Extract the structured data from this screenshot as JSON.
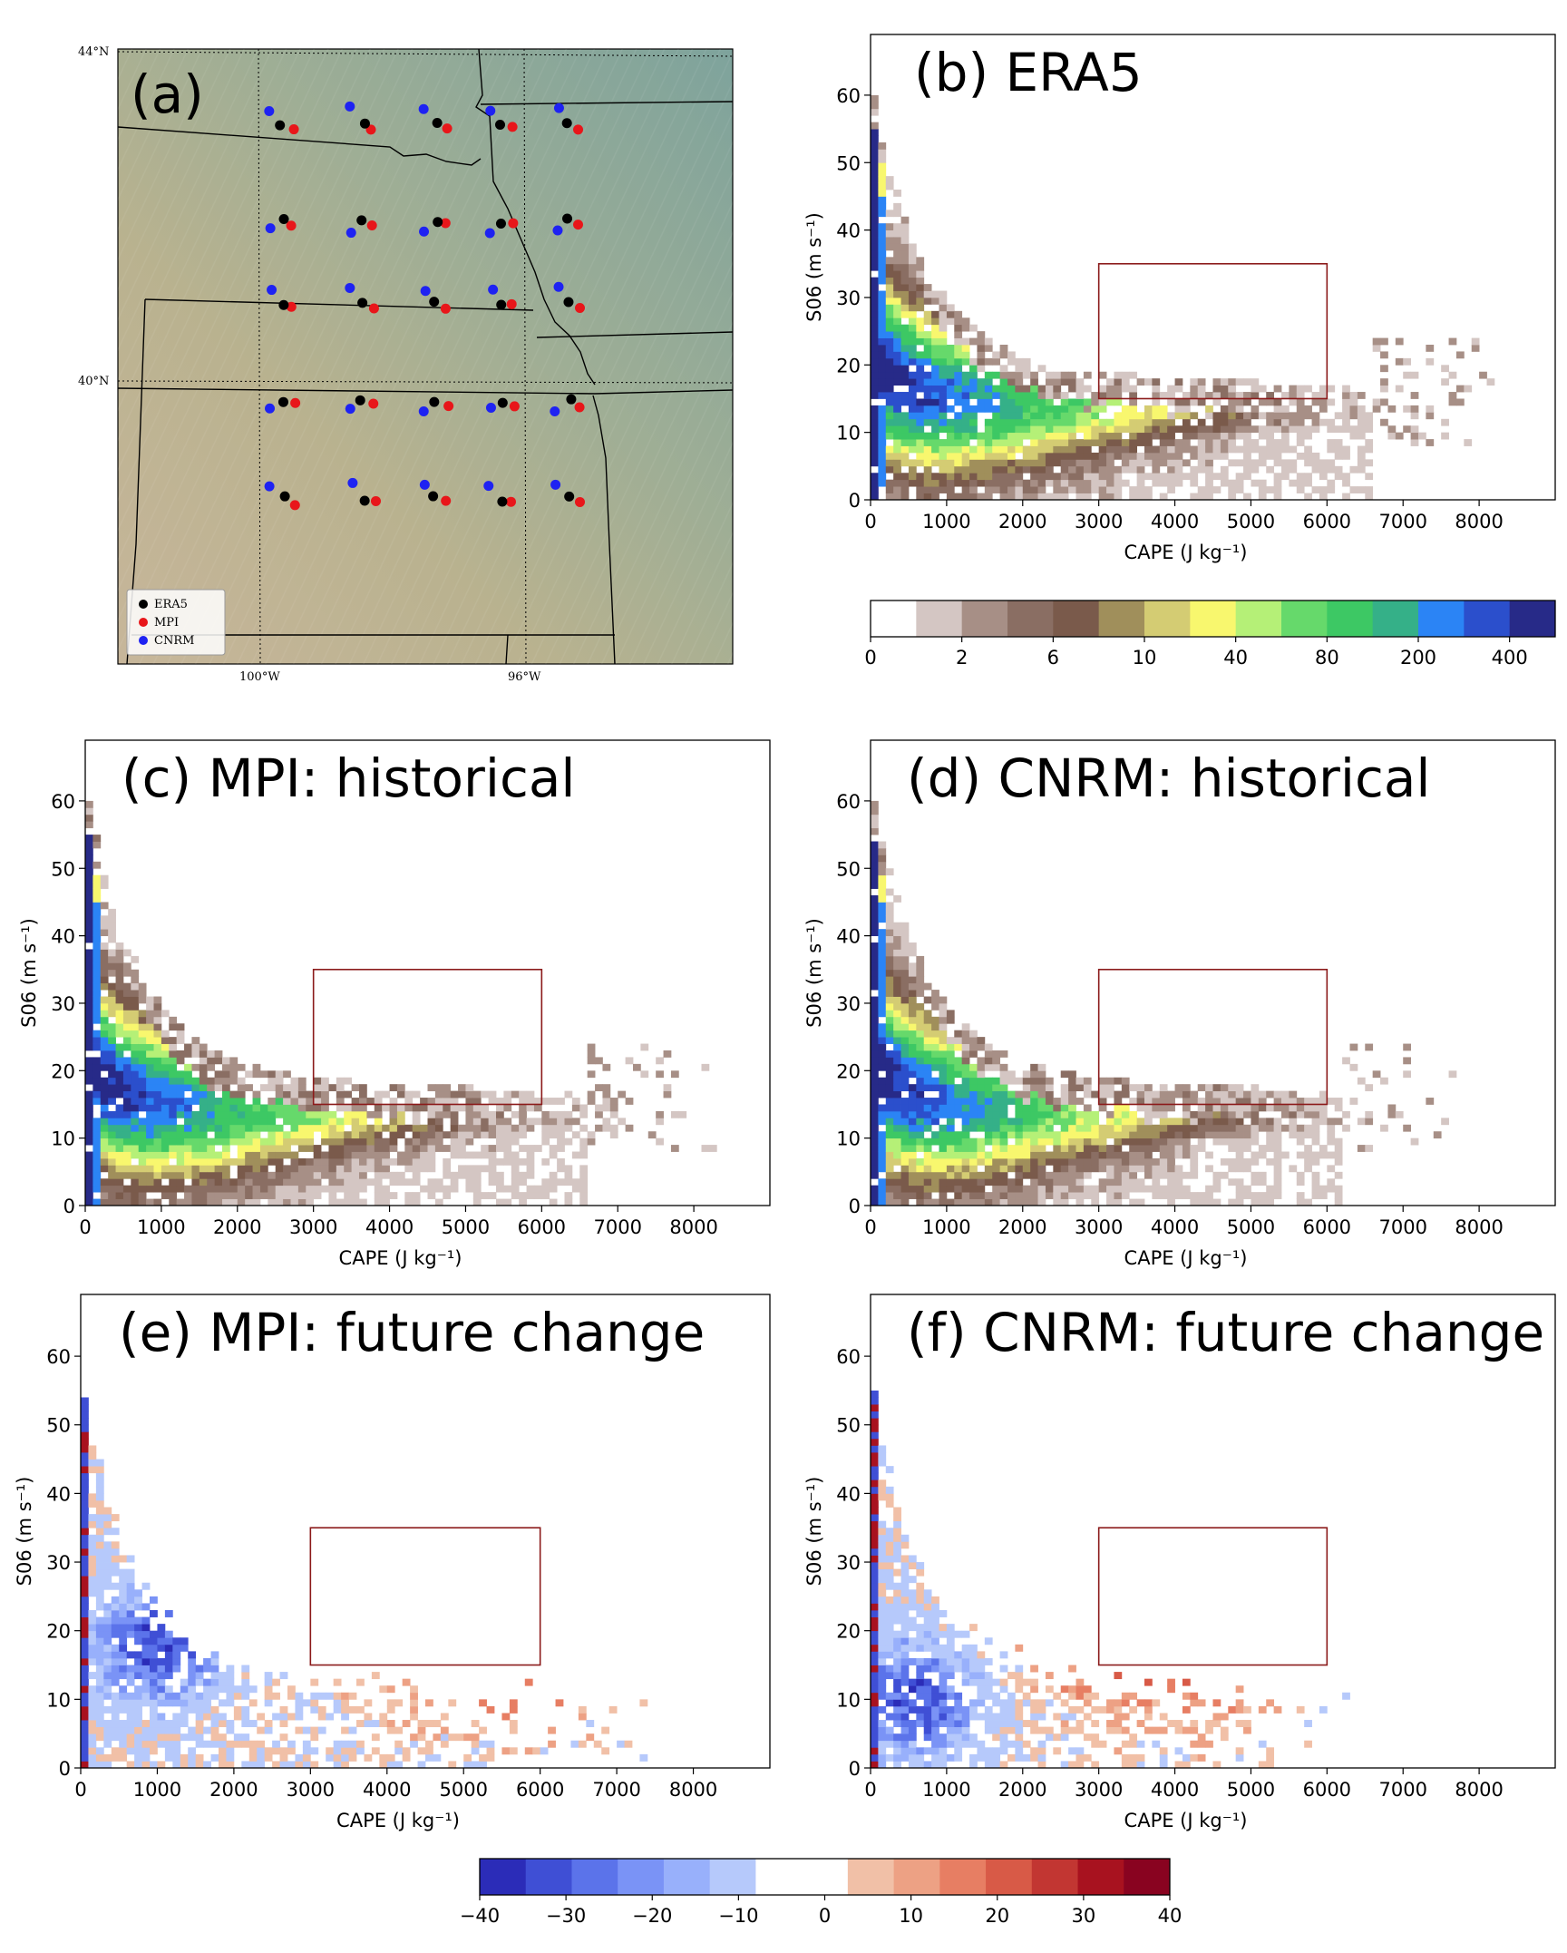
{
  "chart_data": [
    {
      "id": "a",
      "type": "map",
      "title": "(a)",
      "lat_labels": [
        "44°N",
        "40°N"
      ],
      "lon_labels": [
        "100°W",
        "96°W"
      ],
      "legend": [
        {
          "label": "ERA5",
          "color": "#000000"
        },
        {
          "label": "MPI",
          "color": "#e8161a"
        },
        {
          "label": "CNRM",
          "color": "#1e22f2"
        }
      ],
      "station_rows_lat": [
        43.2,
        42.0,
        41.0,
        39.8,
        38.6
      ],
      "station_cols_lon": [
        -99.6,
        -98.4,
        -97.3,
        -96.3,
        -95.3
      ]
    },
    {
      "id": "b",
      "type": "heatmap",
      "title": "(b) ERA5",
      "xlabel": "CAPE (J kg⁻¹)",
      "ylabel": "S06 (m s⁻¹)",
      "xlim": [
        0,
        9000
      ],
      "ylim": [
        0,
        69
      ],
      "xticks": [
        "0",
        "1000",
        "2000",
        "3000",
        "4000",
        "5000",
        "6000",
        "7000",
        "8000"
      ],
      "yticks": [
        "0",
        "10",
        "20",
        "30",
        "40",
        "50",
        "60"
      ],
      "box": {
        "cape": [
          3000,
          6000
        ],
        "s06": [
          15,
          35
        ]
      },
      "shape": {
        "peak": 6000,
        "edge": 6600,
        "tail": 8000
      }
    },
    {
      "id": "c",
      "type": "heatmap",
      "title": "(c) MPI: historical",
      "xlabel": "CAPE (J kg⁻¹)",
      "ylabel": "S06 (m s⁻¹)",
      "xlim": [
        0,
        9000
      ],
      "ylim": [
        0,
        69
      ],
      "xticks": [
        "0",
        "1000",
        "2000",
        "3000",
        "4000",
        "5000",
        "6000",
        "7000",
        "8000"
      ],
      "yticks": [
        "0",
        "10",
        "20",
        "30",
        "40",
        "50",
        "60"
      ],
      "box": {
        "cape": [
          3000,
          6000
        ],
        "s06": [
          15,
          35
        ]
      },
      "shape": {
        "peak": 6100,
        "edge": 6600,
        "tail": 8000
      }
    },
    {
      "id": "d",
      "type": "heatmap",
      "title": "(d) CNRM: historical",
      "xlabel": "CAPE (J kg⁻¹)",
      "ylabel": "S06 (m s⁻¹)",
      "xlim": [
        0,
        9000
      ],
      "ylim": [
        0,
        69
      ],
      "xticks": [
        "0",
        "1000",
        "2000",
        "3000",
        "4000",
        "5000",
        "6000",
        "7000",
        "8000"
      ],
      "yticks": [
        "0",
        "10",
        "20",
        "30",
        "40",
        "50",
        "60"
      ],
      "box": {
        "cape": [
          3000,
          6000
        ],
        "s06": [
          15,
          35
        ]
      },
      "shape": {
        "peak": 5600,
        "edge": 6200,
        "tail": 7600
      }
    },
    {
      "id": "e",
      "type": "heatmap",
      "title": "(e) MPI: future change",
      "xlabel": "CAPE (J kg⁻¹)",
      "ylabel": "S06 (m s⁻¹)",
      "xlim": [
        0,
        9000
      ],
      "ylim": [
        0,
        69
      ],
      "xticks": [
        "0",
        "1000",
        "2000",
        "3000",
        "4000",
        "5000",
        "6000",
        "7000",
        "8000"
      ],
      "yticks": [
        "0",
        "10",
        "20",
        "30",
        "40",
        "50",
        "60"
      ],
      "box": {
        "cape": [
          3000,
          6000
        ],
        "s06": [
          15,
          35
        ]
      },
      "shape": {
        "peak": 5500,
        "edge": 7500,
        "tail": 7800,
        "neg_center": 1000,
        "neg_s06": 18
      }
    },
    {
      "id": "f",
      "type": "heatmap",
      "title": "(f) CNRM: future change",
      "xlabel": "CAPE (J kg⁻¹)",
      "ylabel": "S06 (m s⁻¹)",
      "xlim": [
        0,
        9000
      ],
      "ylim": [
        0,
        69
      ],
      "xticks": [
        "0",
        "1000",
        "2000",
        "3000",
        "4000",
        "5000",
        "6000",
        "7000",
        "8000"
      ],
      "yticks": [
        "0",
        "10",
        "20",
        "30",
        "40",
        "50",
        "60"
      ],
      "box": {
        "cape": [
          3000,
          6000
        ],
        "s06": [
          15,
          35
        ]
      },
      "shape": {
        "peak": 3900,
        "edge": 6300,
        "tail": 6500,
        "neg_center": 600,
        "neg_s06": 10
      }
    }
  ],
  "colorbars": {
    "count": {
      "tick_labels": [
        "0",
        "2",
        "6",
        "10",
        "40",
        "80",
        "200",
        "400"
      ],
      "colors": [
        "#ffffff",
        "#d4c6c3",
        "#a78f86",
        "#8a6e63",
        "#7a5a4b",
        "#a08f5b",
        "#d4cc73",
        "#f8f76e",
        "#b5f077",
        "#66d96b",
        "#3dc864",
        "#35b088",
        "#2b84f5",
        "#2b4fcc",
        "#272a88"
      ]
    },
    "change": {
      "tick_labels": [
        "−40",
        "−30",
        "−20",
        "−10",
        "0",
        "10",
        "20",
        "30",
        "40"
      ],
      "colors": [
        "#2b2cb8",
        "#3f4fd5",
        "#5b73ea",
        "#7a93f6",
        "#98b0fb",
        "#b6c9fb",
        "#ffffff",
        "#ffffff",
        "#f1c0a7",
        "#eda184",
        "#e77e63",
        "#d85a47",
        "#c23632",
        "#a8121f",
        "#890320"
      ]
    }
  }
}
